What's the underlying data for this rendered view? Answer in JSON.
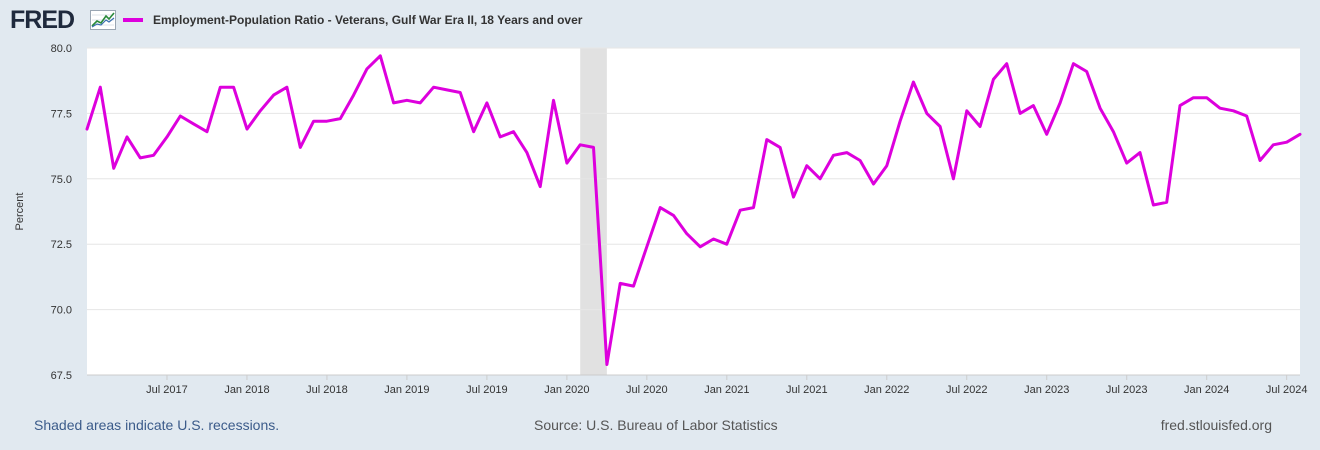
{
  "header": {
    "logo_text": "FRED",
    "logo_icon": "graph-line-icon",
    "legend_label": "Employment-Population Ratio - Veterans, Gulf War Era II, 18 Years and over",
    "series_color": "#dd00dd"
  },
  "footer": {
    "recession_note": "Shaded areas indicate U.S. recessions.",
    "source": "Source: U.S. Bureau of Labor Statistics",
    "site": "fred.stlouisfed.org"
  },
  "colors": {
    "background": "#e1e9f0",
    "plot_background": "#ffffff",
    "grid": "#e6e6e6",
    "recession_shade": "#e1e1e1"
  },
  "chart_data": {
    "type": "line",
    "title": "Employment-Population Ratio - Veterans, Gulf War Era II, 18 Years and over",
    "xlabel": "",
    "ylabel": "Percent",
    "ylim": [
      67.5,
      80.0
    ],
    "y_ticks": [
      67.5,
      70.0,
      72.5,
      75.0,
      77.5,
      80.0
    ],
    "y_tick_labels": [
      "67.5",
      "70.0",
      "72.5",
      "75.0",
      "77.5",
      "80.0"
    ],
    "x_range": [
      "2017-01",
      "2024-08"
    ],
    "x_ticks": [
      {
        "date": "2017-07",
        "label": "Jul 2017"
      },
      {
        "date": "2018-01",
        "label": "Jan 2018"
      },
      {
        "date": "2018-07",
        "label": "Jul 2018"
      },
      {
        "date": "2019-01",
        "label": "Jan 2019"
      },
      {
        "date": "2019-07",
        "label": "Jul 2019"
      },
      {
        "date": "2020-01",
        "label": "Jan 2020"
      },
      {
        "date": "2020-07",
        "label": "Jul 2020"
      },
      {
        "date": "2021-01",
        "label": "Jan 2021"
      },
      {
        "date": "2021-07",
        "label": "Jul 2021"
      },
      {
        "date": "2022-01",
        "label": "Jan 2022"
      },
      {
        "date": "2022-07",
        "label": "Jul 2022"
      },
      {
        "date": "2023-01",
        "label": "Jan 2023"
      },
      {
        "date": "2023-07",
        "label": "Jul 2023"
      },
      {
        "date": "2024-01",
        "label": "Jan 2024"
      },
      {
        "date": "2024-07",
        "label": "Jul 2024"
      }
    ],
    "recessions": [
      {
        "start": "2020-02",
        "end": "2020-04"
      }
    ],
    "grid": true,
    "legend": "top-left",
    "series": [
      {
        "name": "Employment-Population Ratio - Veterans, Gulf War Era II, 18 Years and over",
        "start": "2017-01",
        "frequency": "monthly",
        "values": [
          76.9,
          78.5,
          75.4,
          76.6,
          75.8,
          75.9,
          76.6,
          77.4,
          77.1,
          76.8,
          78.5,
          78.5,
          76.9,
          77.6,
          78.2,
          78.5,
          76.2,
          77.2,
          77.2,
          77.3,
          78.2,
          79.2,
          79.7,
          77.9,
          78.0,
          77.9,
          78.5,
          78.4,
          78.3,
          76.8,
          77.9,
          76.6,
          76.8,
          76.0,
          74.7,
          78.0,
          75.6,
          76.3,
          76.2,
          67.9,
          71.0,
          70.9,
          72.4,
          73.9,
          73.6,
          72.9,
          72.4,
          72.7,
          72.5,
          73.8,
          73.9,
          76.5,
          76.2,
          74.3,
          75.5,
          75.0,
          75.9,
          76.0,
          75.7,
          74.8,
          75.5,
          77.2,
          78.7,
          77.5,
          77.0,
          75.0,
          77.6,
          77.0,
          78.8,
          79.4,
          77.5,
          77.8,
          76.7,
          77.9,
          79.4,
          79.1,
          77.7,
          76.8,
          75.6,
          76.0,
          74.0,
          74.1,
          77.8,
          78.1,
          78.1,
          77.7,
          77.6,
          77.4,
          75.7,
          76.3,
          76.4,
          76.7
        ]
      }
    ]
  }
}
